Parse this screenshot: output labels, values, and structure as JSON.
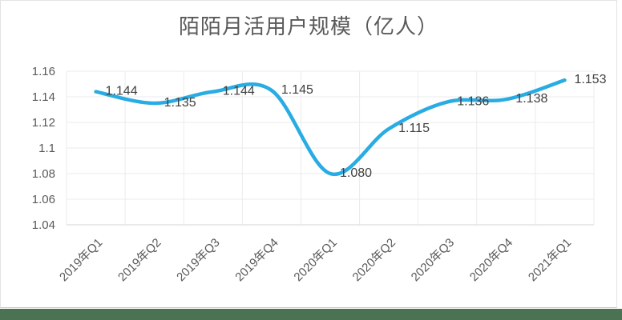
{
  "chart_data": {
    "type": "line",
    "title": "陌陌月活用户规模（亿人）",
    "categories": [
      "2019年Q1",
      "2019年Q2",
      "2019年Q3",
      "2019年Q4",
      "2020年Q1",
      "2020年Q2",
      "2020年Q3",
      "2020年Q4",
      "2021年Q1"
    ],
    "values": [
      1.144,
      1.135,
      1.144,
      1.145,
      1.08,
      1.115,
      1.136,
      1.138,
      1.153
    ],
    "data_labels": [
      "1.144",
      "1.135",
      "1.144",
      "1.145",
      "1.080",
      "1.115",
      "1.136",
      "1.138",
      "1.153"
    ],
    "xlabel": "",
    "ylabel": "",
    "ylim": [
      1.04,
      1.16
    ],
    "y_tick_labels": [
      "1.04",
      "1.06",
      "1.08",
      "1.1",
      "1.12",
      "1.14",
      "1.16"
    ],
    "grid": true,
    "smooth": true,
    "legend": "none"
  },
  "style": {
    "line_color": "#29ace3",
    "gridline_color": "#ebebeb",
    "axis_line_color": "#d6d6d6",
    "tick_label_color": "#595959",
    "data_label_color": "#404040",
    "title_color": "#595959",
    "bottom_strip_color": "#4a7253",
    "card_background": "#ffffff"
  }
}
